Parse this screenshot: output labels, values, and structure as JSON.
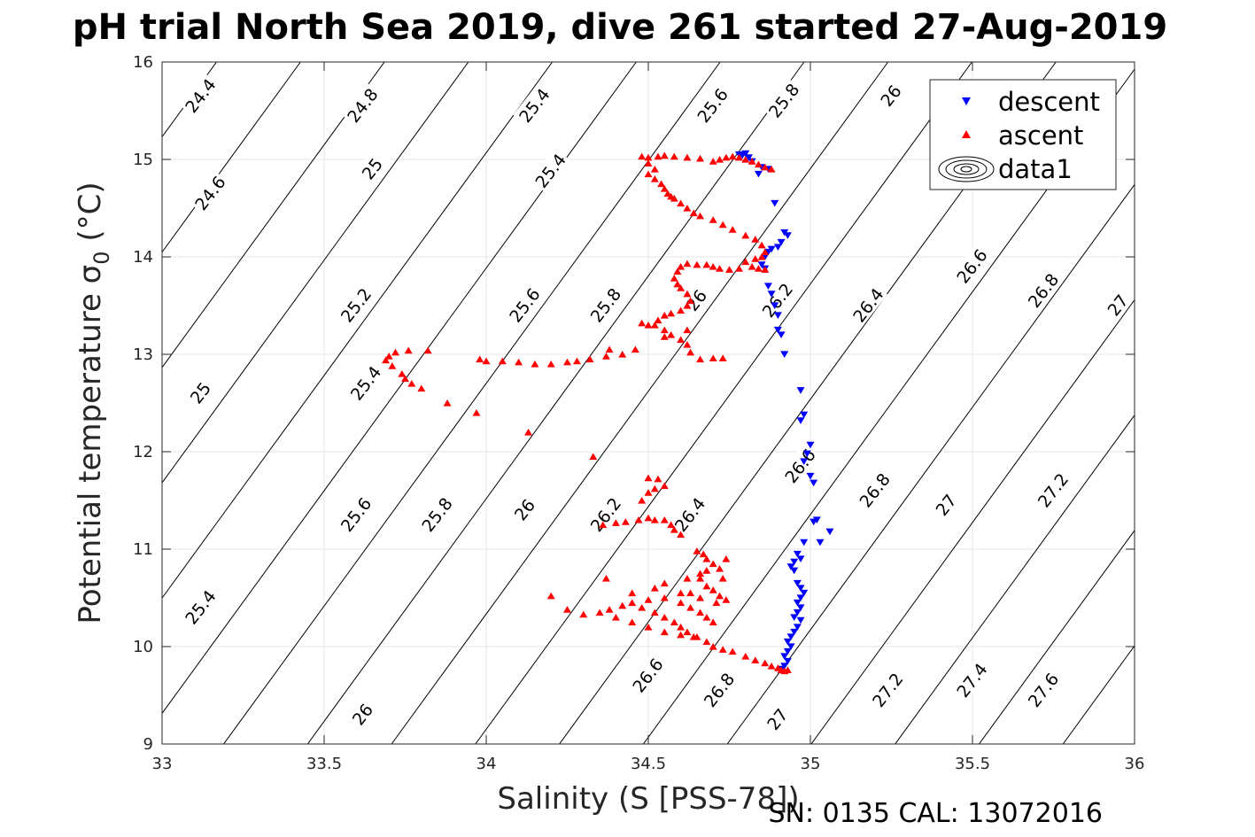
{
  "chart_data": {
    "type": "scatter",
    "title": "pH trial North Sea 2019, dive 261 started 27-Aug-2019",
    "xlabel": "Salinity (S [PSS-78])",
    "ylabel": "Potential temperature σ",
    "ylabel_sub": "0",
    "ylabel_unit": " (°C)",
    "xlim": [
      33,
      36
    ],
    "ylim": [
      9,
      16
    ],
    "xticks": [
      "33",
      "33.5",
      "34",
      "34.5",
      "35",
      "35.5",
      "36"
    ],
    "yticks": [
      "9",
      "10",
      "11",
      "12",
      "13",
      "14",
      "15",
      "16"
    ],
    "grid": true,
    "legend_position": "top-right",
    "legend": [
      "descent",
      "ascent",
      "data1"
    ],
    "footer": "SN: 0135  CAL: 13072016",
    "contour_levels": [
      24.4,
      24.6,
      24.8,
      25,
      25.2,
      25.4,
      25.6,
      25.8,
      26,
      26.2,
      26.4,
      26.6,
      26.8,
      27,
      27.2,
      27.4,
      27.6
    ],
    "contour_labels": [
      {
        "text": "24.4",
        "s": 33.12,
        "t": 15.65
      },
      {
        "text": "24.6",
        "s": 33.15,
        "t": 14.65
      },
      {
        "text": "24.8",
        "s": 33.62,
        "t": 15.55
      },
      {
        "text": "25",
        "s": 33.65,
        "t": 14.9
      },
      {
        "text": "25.2",
        "s": 33.6,
        "t": 13.5
      },
      {
        "text": "25.4",
        "s": 34.15,
        "t": 15.55
      },
      {
        "text": "25.4",
        "s": 34.2,
        "t": 14.88
      },
      {
        "text": "25.6",
        "s": 34.7,
        "t": 15.55
      },
      {
        "text": "25.8",
        "s": 34.92,
        "t": 15.6
      },
      {
        "text": "26",
        "s": 35.25,
        "t": 15.65
      },
      {
        "text": "25",
        "s": 33.12,
        "t": 12.6
      },
      {
        "text": "25.4",
        "s": 33.63,
        "t": 12.7
      },
      {
        "text": "25.6",
        "s": 34.12,
        "t": 13.5
      },
      {
        "text": "25.8",
        "s": 34.37,
        "t": 13.5
      },
      {
        "text": "26",
        "s": 34.65,
        "t": 13.55
      },
      {
        "text": "26.2",
        "s": 34.9,
        "t": 13.55
      },
      {
        "text": "26.4",
        "s": 35.18,
        "t": 13.5
      },
      {
        "text": "26.6",
        "s": 35.5,
        "t": 13.9
      },
      {
        "text": "26.8",
        "s": 35.72,
        "t": 13.65
      },
      {
        "text": "27",
        "s": 35.95,
        "t": 13.5
      },
      {
        "text": "25.4",
        "s": 33.12,
        "t": 10.4
      },
      {
        "text": "25.6",
        "s": 33.6,
        "t": 11.35
      },
      {
        "text": "25.8",
        "s": 33.85,
        "t": 11.35
      },
      {
        "text": "26",
        "s": 34.12,
        "t": 11.4
      },
      {
        "text": "26.2",
        "s": 34.37,
        "t": 11.35
      },
      {
        "text": "26.4",
        "s": 34.63,
        "t": 11.35
      },
      {
        "text": "26.6",
        "s": 34.97,
        "t": 11.85
      },
      {
        "text": "26.8",
        "s": 35.2,
        "t": 11.6
      },
      {
        "text": "27",
        "s": 35.42,
        "t": 11.45
      },
      {
        "text": "27.2",
        "s": 35.75,
        "t": 11.6
      },
      {
        "text": "26",
        "s": 33.62,
        "t": 9.3
      },
      {
        "text": "26.6",
        "s": 34.5,
        "t": 9.7
      },
      {
        "text": "26.8",
        "s": 34.72,
        "t": 9.55
      },
      {
        "text": "27",
        "s": 34.9,
        "t": 9.25
      },
      {
        "text": "27.2",
        "s": 35.24,
        "t": 9.55
      },
      {
        "text": "27.4",
        "s": 35.5,
        "t": 9.65
      },
      {
        "text": "27.6",
        "s": 35.72,
        "t": 9.55
      }
    ],
    "series": [
      {
        "name": "descent",
        "marker": "triangle-down",
        "color": "#0000ff",
        "points": [
          [
            34.78,
            15.05
          ],
          [
            34.8,
            15.06
          ],
          [
            34.81,
            15.02
          ],
          [
            34.82,
            14.98
          ],
          [
            34.79,
            15.04
          ],
          [
            34.85,
            14.92
          ],
          [
            34.87,
            14.9
          ],
          [
            34.84,
            14.85
          ],
          [
            34.89,
            14.55
          ],
          [
            34.92,
            14.25
          ],
          [
            34.93,
            14.22
          ],
          [
            34.91,
            14.15
          ],
          [
            34.9,
            14.1
          ],
          [
            34.88,
            14.08
          ],
          [
            34.87,
            14.05
          ],
          [
            34.86,
            14.0
          ],
          [
            34.85,
            13.92
          ],
          [
            34.86,
            13.88
          ],
          [
            34.87,
            13.7
          ],
          [
            34.88,
            13.62
          ],
          [
            34.89,
            13.5
          ],
          [
            34.9,
            13.4
          ],
          [
            34.9,
            13.25
          ],
          [
            34.91,
            13.2
          ],
          [
            34.92,
            13.0
          ],
          [
            34.97,
            12.63
          ],
          [
            34.98,
            12.38
          ],
          [
            34.97,
            12.32
          ],
          [
            35.0,
            12.07
          ],
          [
            34.99,
            11.98
          ],
          [
            34.98,
            11.9
          ],
          [
            35.0,
            11.75
          ],
          [
            35.01,
            11.68
          ],
          [
            35.02,
            11.3
          ],
          [
            35.01,
            11.28
          ],
          [
            35.06,
            11.18
          ],
          [
            34.98,
            11.07
          ],
          [
            35.03,
            11.07
          ],
          [
            34.96,
            10.95
          ],
          [
            34.97,
            10.9
          ],
          [
            34.95,
            10.87
          ],
          [
            34.94,
            10.82
          ],
          [
            34.95,
            10.78
          ],
          [
            34.96,
            10.65
          ],
          [
            34.97,
            10.6
          ],
          [
            34.98,
            10.55
          ],
          [
            34.97,
            10.5
          ],
          [
            34.96,
            10.45
          ],
          [
            34.97,
            10.4
          ],
          [
            34.96,
            10.35
          ],
          [
            34.95,
            10.3
          ],
          [
            34.97,
            10.27
          ],
          [
            34.96,
            10.2
          ],
          [
            34.95,
            10.15
          ],
          [
            34.94,
            10.1
          ],
          [
            34.93,
            10.05
          ],
          [
            34.94,
            10.0
          ],
          [
            34.93,
            9.95
          ],
          [
            34.92,
            9.9
          ],
          [
            34.93,
            9.85
          ],
          [
            34.92,
            9.8
          ],
          [
            34.91,
            9.77
          ]
        ]
      },
      {
        "name": "ascent",
        "marker": "triangle-up",
        "color": "#ff0000",
        "points": [
          [
            34.48,
            15.03
          ],
          [
            34.5,
            15.02
          ],
          [
            34.53,
            15.03
          ],
          [
            34.55,
            15.04
          ],
          [
            34.58,
            15.03
          ],
          [
            34.62,
            15.02
          ],
          [
            34.66,
            15.01
          ],
          [
            34.7,
            14.98
          ],
          [
            34.72,
            15.0
          ],
          [
            34.74,
            15.02
          ],
          [
            34.76,
            15.03
          ],
          [
            34.78,
            15.02
          ],
          [
            34.8,
            15.0
          ],
          [
            34.82,
            14.98
          ],
          [
            34.84,
            14.95
          ],
          [
            34.86,
            14.92
          ],
          [
            34.88,
            14.9
          ],
          [
            34.5,
            14.96
          ],
          [
            34.52,
            14.9
          ],
          [
            34.5,
            14.85
          ],
          [
            34.52,
            14.8
          ],
          [
            34.54,
            14.75
          ],
          [
            34.55,
            14.7
          ],
          [
            34.56,
            14.65
          ],
          [
            34.57,
            14.62
          ],
          [
            34.58,
            14.6
          ],
          [
            34.6,
            14.55
          ],
          [
            34.62,
            14.5
          ],
          [
            34.64,
            14.45
          ],
          [
            34.66,
            14.42
          ],
          [
            34.7,
            14.38
          ],
          [
            34.73,
            14.33
          ],
          [
            34.76,
            14.28
          ],
          [
            34.8,
            14.22
          ],
          [
            34.83,
            14.18
          ],
          [
            34.85,
            14.12
          ],
          [
            34.86,
            14.05
          ],
          [
            34.85,
            14.0
          ],
          [
            34.83,
            13.98
          ],
          [
            34.8,
            13.95
          ],
          [
            34.82,
            13.9
          ],
          [
            34.84,
            13.88
          ],
          [
            34.86,
            13.87
          ],
          [
            34.78,
            13.88
          ],
          [
            34.75,
            13.87
          ],
          [
            34.72,
            13.88
          ],
          [
            34.7,
            13.9
          ],
          [
            34.68,
            13.92
          ],
          [
            34.65,
            13.92
          ],
          [
            34.62,
            13.93
          ],
          [
            34.6,
            13.9
          ],
          [
            34.59,
            13.85
          ],
          [
            34.58,
            13.78
          ],
          [
            34.59,
            13.72
          ],
          [
            34.6,
            13.68
          ],
          [
            34.62,
            13.62
          ],
          [
            34.63,
            13.55
          ],
          [
            34.62,
            13.5
          ],
          [
            34.6,
            13.45
          ],
          [
            34.57,
            13.42
          ],
          [
            34.55,
            13.4
          ],
          [
            34.53,
            13.35
          ],
          [
            34.52,
            13.3
          ],
          [
            34.55,
            13.25
          ],
          [
            34.57,
            13.2
          ],
          [
            34.6,
            13.15
          ],
          [
            34.62,
            13.1
          ],
          [
            34.63,
            13.02
          ],
          [
            34.5,
            13.3
          ],
          [
            34.48,
            13.32
          ],
          [
            34.7,
            12.96
          ],
          [
            34.66,
            12.95
          ],
          [
            34.73,
            12.96
          ],
          [
            34.62,
            13.25
          ],
          [
            34.55,
            13.18
          ],
          [
            34.46,
            13.05
          ],
          [
            34.42,
            13.0
          ],
          [
            34.38,
            13.05
          ],
          [
            34.37,
            12.98
          ],
          [
            34.32,
            12.95
          ],
          [
            34.28,
            12.93
          ],
          [
            34.25,
            12.92
          ],
          [
            34.2,
            12.9
          ],
          [
            34.15,
            12.9
          ],
          [
            34.1,
            12.92
          ],
          [
            34.05,
            12.93
          ],
          [
            34.0,
            12.93
          ],
          [
            33.98,
            12.95
          ],
          [
            33.82,
            13.04
          ],
          [
            33.76,
            13.04
          ],
          [
            33.72,
            13.02
          ],
          [
            33.7,
            12.98
          ],
          [
            33.69,
            12.94
          ],
          [
            33.71,
            12.88
          ],
          [
            33.74,
            12.8
          ],
          [
            33.75,
            12.75
          ],
          [
            33.77,
            12.7
          ],
          [
            33.8,
            12.65
          ],
          [
            33.88,
            12.5
          ],
          [
            33.97,
            12.4
          ],
          [
            34.13,
            12.2
          ],
          [
            34.33,
            11.95
          ],
          [
            34.5,
            11.73
          ],
          [
            34.53,
            11.72
          ],
          [
            34.55,
            11.65
          ],
          [
            34.52,
            11.62
          ],
          [
            34.5,
            11.58
          ],
          [
            34.48,
            11.5
          ],
          [
            34.5,
            11.32
          ],
          [
            34.52,
            11.3
          ],
          [
            34.55,
            11.3
          ],
          [
            34.57,
            11.25
          ],
          [
            34.58,
            11.2
          ],
          [
            34.6,
            11.15
          ],
          [
            34.47,
            11.3
          ],
          [
            34.43,
            11.28
          ],
          [
            34.4,
            11.27
          ],
          [
            34.36,
            11.25
          ],
          [
            34.65,
            10.98
          ],
          [
            34.67,
            10.95
          ],
          [
            34.68,
            10.9
          ],
          [
            34.7,
            10.85
          ],
          [
            34.72,
            10.8
          ],
          [
            34.68,
            10.78
          ],
          [
            34.66,
            10.7
          ],
          [
            34.68,
            10.62
          ],
          [
            34.7,
            10.58
          ],
          [
            34.72,
            10.52
          ],
          [
            34.74,
            10.48
          ],
          [
            34.71,
            10.45
          ],
          [
            34.66,
            10.5
          ],
          [
            34.63,
            10.55
          ],
          [
            34.6,
            10.55
          ],
          [
            34.55,
            10.5
          ],
          [
            34.5,
            10.48
          ],
          [
            34.45,
            10.45
          ],
          [
            34.42,
            10.42
          ],
          [
            34.38,
            10.38
          ],
          [
            34.35,
            10.35
          ],
          [
            34.3,
            10.33
          ],
          [
            34.25,
            10.38
          ],
          [
            34.2,
            10.52
          ],
          [
            34.37,
            10.7
          ],
          [
            34.45,
            10.55
          ],
          [
            34.48,
            10.4
          ],
          [
            34.52,
            10.35
          ],
          [
            34.55,
            10.3
          ],
          [
            34.58,
            10.25
          ],
          [
            34.6,
            10.2
          ],
          [
            34.62,
            10.15
          ],
          [
            34.65,
            10.1
          ],
          [
            34.68,
            10.05
          ],
          [
            34.7,
            10.0
          ],
          [
            34.73,
            9.97
          ],
          [
            34.76,
            9.95
          ],
          [
            34.8,
            9.9
          ],
          [
            34.83,
            9.86
          ],
          [
            34.86,
            9.83
          ],
          [
            34.88,
            9.8
          ],
          [
            34.9,
            9.78
          ],
          [
            34.91,
            9.76
          ],
          [
            34.92,
            9.75
          ],
          [
            34.93,
            9.76
          ],
          [
            34.4,
            10.3
          ],
          [
            34.45,
            10.25
          ],
          [
            34.5,
            10.2
          ],
          [
            34.55,
            10.15
          ],
          [
            34.6,
            10.12
          ],
          [
            34.64,
            10.1
          ],
          [
            34.6,
            10.45
          ],
          [
            34.63,
            10.4
          ],
          [
            34.66,
            10.35
          ],
          [
            34.68,
            10.3
          ],
          [
            34.7,
            10.25
          ],
          [
            34.52,
            10.6
          ],
          [
            34.55,
            10.65
          ],
          [
            34.62,
            10.7
          ],
          [
            34.66,
            10.75
          ],
          [
            34.74,
            10.9
          ],
          [
            34.73,
            10.7
          ]
        ]
      }
    ]
  }
}
